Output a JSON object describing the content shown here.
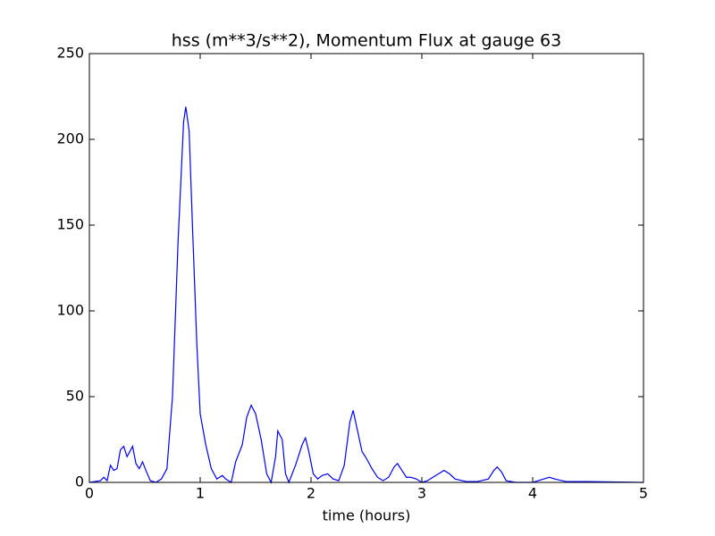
{
  "chart_data": {
    "type": "line",
    "title": "hss (m**3/s**2), Momentum Flux at gauge 63",
    "xlabel": "time (hours)",
    "x": [
      0,
      0.1,
      0.13,
      0.16,
      0.19,
      0.22,
      0.25,
      0.28,
      0.31,
      0.34,
      0.39,
      0.42,
      0.45,
      0.48,
      0.51,
      0.55,
      0.6,
      0.65,
      0.7,
      0.75,
      0.8,
      0.85,
      0.87,
      0.9,
      0.93,
      0.97,
      1.0,
      1.05,
      1.1,
      1.15,
      1.2,
      1.23,
      1.28,
      1.32,
      1.38,
      1.42,
      1.46,
      1.5,
      1.55,
      1.6,
      1.64,
      1.68,
      1.7,
      1.74,
      1.77,
      1.8,
      1.86,
      1.92,
      1.95,
      1.98,
      2.02,
      2.06,
      2.1,
      2.15,
      2.2,
      2.25,
      2.3,
      2.35,
      2.38,
      2.42,
      2.46,
      2.5,
      2.55,
      2.6,
      2.65,
      2.7,
      2.75,
      2.78,
      2.82,
      2.86,
      2.9,
      2.95,
      3.0,
      3.05,
      3.1,
      3.15,
      3.2,
      3.25,
      3.3,
      3.4,
      3.5,
      3.6,
      3.65,
      3.68,
      3.72,
      3.76,
      3.85,
      4.0,
      4.1,
      4.15,
      4.2,
      4.3,
      4.5,
      4.7,
      5.0
    ],
    "series": [
      {
        "color": "#0000ff",
        "values": [
          0,
          1,
          3,
          1,
          10,
          7,
          8,
          19,
          21,
          15,
          21,
          11,
          8,
          12,
          7,
          1,
          0,
          2,
          8,
          50,
          140,
          210,
          219,
          205,
          150,
          80,
          40,
          22,
          8,
          2,
          4,
          2,
          0,
          12,
          22,
          38,
          45,
          40,
          25,
          5,
          0,
          15,
          30,
          25,
          5,
          0,
          10,
          22,
          26,
          18,
          5,
          2,
          4,
          5,
          2,
          1,
          10,
          35,
          42,
          30,
          18,
          14,
          8,
          3,
          1,
          3,
          9,
          11,
          7,
          3,
          3,
          2,
          0,
          1,
          3,
          5,
          7,
          5,
          2,
          0.5,
          0.5,
          2,
          7,
          9,
          6,
          1,
          0,
          0,
          2,
          3,
          2,
          0.5,
          0.5,
          0.3,
          0
        ]
      }
    ],
    "xlim": [
      0,
      5
    ],
    "xticks": [
      0,
      1,
      2,
      3,
      4,
      5
    ],
    "ylim": [
      0,
      250
    ],
    "yticks": [
      0,
      50,
      100,
      150,
      200,
      250
    ]
  }
}
